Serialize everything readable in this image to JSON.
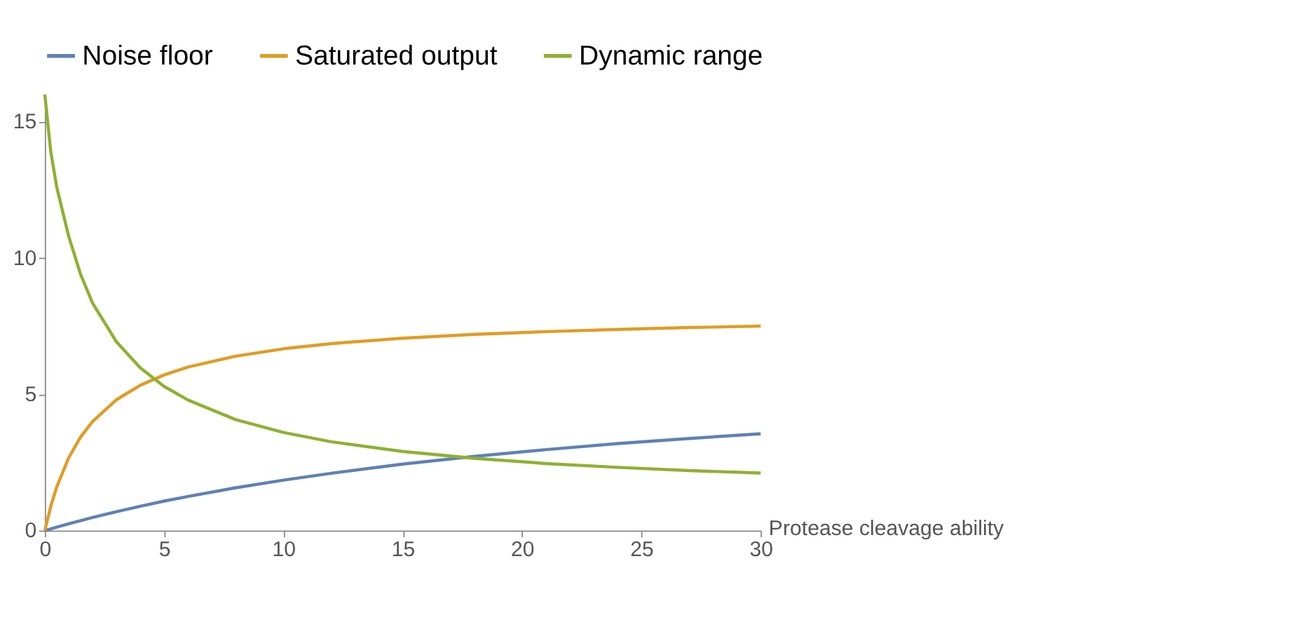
{
  "chart_data": {
    "type": "line",
    "xlabel": "Protease cleavage ability",
    "xlim": [
      0,
      30
    ],
    "ylim": [
      0,
      16
    ],
    "xticks": [
      0,
      5,
      10,
      15,
      20,
      25,
      30
    ],
    "yticks": [
      0,
      5,
      10,
      15
    ],
    "grid": false,
    "legend": "top",
    "marker": "none",
    "line_style": "solid",
    "x": [
      0,
      0.25,
      0.5,
      1,
      1.5,
      2,
      3,
      4,
      5,
      6,
      8,
      10,
      12,
      15,
      18,
      21,
      24,
      27,
      30
    ],
    "series": [
      {
        "name": "Noise floor",
        "color": "#5e81b5",
        "values": [
          0,
          0.064,
          0.127,
          0.248,
          0.366,
          0.479,
          0.693,
          0.893,
          1.08,
          1.25,
          1.57,
          1.85,
          2.1,
          2.44,
          2.72,
          2.97,
          3.19,
          3.38,
          3.55
        ]
      },
      {
        "name": "Saturated output",
        "color": "#e19c24",
        "values": [
          0,
          0.89,
          1.6,
          2.67,
          3.43,
          4,
          4.8,
          5.33,
          5.71,
          6,
          6.4,
          6.67,
          6.86,
          7.06,
          7.2,
          7.3,
          7.38,
          7.45,
          7.5
        ]
      },
      {
        "name": "Dynamic range",
        "color": "#8fb032",
        "values": [
          16,
          13.9,
          12.6,
          10.8,
          9.4,
          8.35,
          6.93,
          5.97,
          5.29,
          4.79,
          4.07,
          3.6,
          3.26,
          2.9,
          2.65,
          2.46,
          2.32,
          2.2,
          2.11
        ]
      }
    ]
  }
}
